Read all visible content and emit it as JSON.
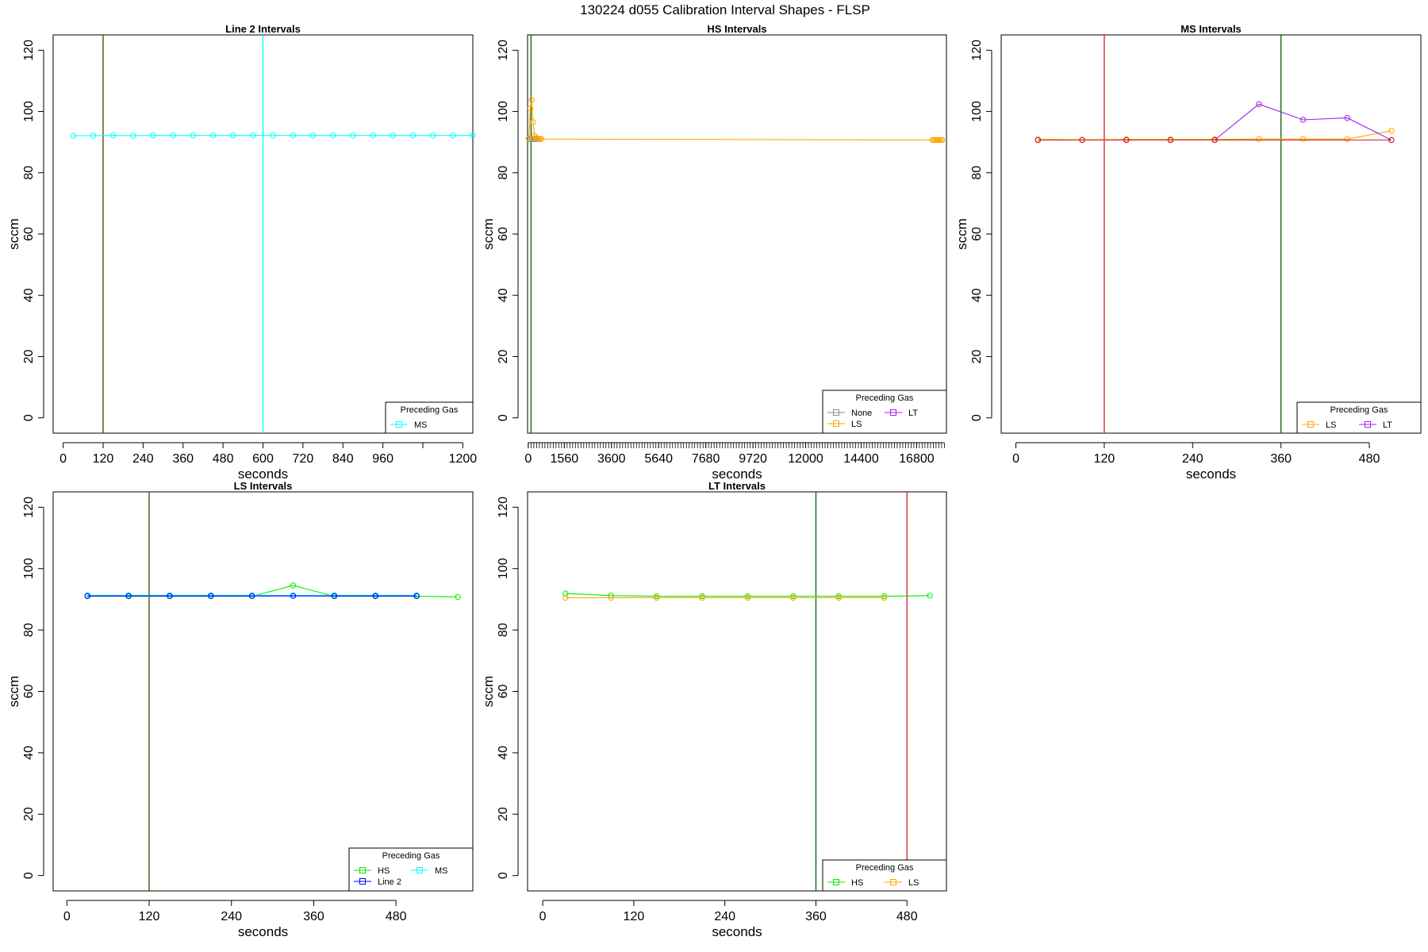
{
  "title": "130224   d055   Calibration Interval Shapes - FLSP",
  "colors": {
    "None": "#8c8c8c",
    "LS": "#ffa500",
    "LT": "#a020f0",
    "MS": "#00ffff",
    "HS": "#00ee00",
    "Line 2": "#0000ff",
    "red_marker": "#cc2222",
    "green_marker": "#006400",
    "dark_marker": "#3a4a00"
  },
  "chart_data": [
    {
      "type": "line",
      "title": "Line 2 Intervals",
      "xlabel": "seconds",
      "ylabel": "sccm",
      "xlim": [
        -30,
        1230
      ],
      "ylim": [
        -5,
        125
      ],
      "xticks": [
        0,
        120,
        240,
        360,
        480,
        600,
        720,
        840,
        960,
        1200
      ],
      "xtick_labels": [
        "0",
        "120",
        "240",
        "360",
        "480",
        "600",
        "720",
        "840",
        "960",
        "1200"
      ],
      "minor_xticks": [
        1080
      ],
      "yticks": [
        0,
        20,
        40,
        60,
        80,
        100,
        120
      ],
      "vlines": [
        {
          "x": 120,
          "color": "dark_marker"
        },
        {
          "x": 600,
          "color": "MS"
        }
      ],
      "legend": {
        "title": "Preceding Gas",
        "position": "bottomright",
        "columns": 1,
        "entries": [
          "MS"
        ]
      },
      "series": [
        {
          "name": "MS",
          "color": "MS",
          "marker": "circle",
          "x": [
            30,
            90,
            150,
            210,
            270,
            330,
            390,
            450,
            510,
            570,
            630,
            690,
            750,
            810,
            870,
            930,
            990,
            1050,
            1110,
            1170,
            1230
          ],
          "y": [
            92.1,
            92.1,
            92.2,
            92.1,
            92.2,
            92.2,
            92.2,
            92.2,
            92.2,
            92.2,
            92.2,
            92.2,
            92.2,
            92.2,
            92.2,
            92.2,
            92.2,
            92.2,
            92.2,
            92.2,
            92.2
          ]
        }
      ]
    },
    {
      "type": "line",
      "title": "HS Intervals",
      "xlabel": "seconds",
      "ylabel": "sccm",
      "xlim": [
        -30,
        18090
      ],
      "ylim": [
        -5,
        125
      ],
      "xticks": [
        0,
        1560,
        3600,
        5640,
        7680,
        9720,
        12000,
        14400,
        16800
      ],
      "xtick_labels": [
        "0",
        "1560",
        "3600",
        "5640",
        "7680",
        "9720",
        "12000",
        "14400",
        "16800"
      ],
      "minor_xtick_step": 120,
      "minor_xtick_range": [
        0,
        18000
      ],
      "yticks": [
        0,
        20,
        40,
        60,
        80,
        100,
        120
      ],
      "vlines": [
        {
          "x": 120,
          "color": "green_marker"
        }
      ],
      "legend": {
        "title": "Preceding Gas",
        "position": "bottomright",
        "columns": 2,
        "entries": [
          "None",
          "LT",
          "LS"
        ]
      },
      "series": [
        {
          "name": "None",
          "color": "None",
          "marker": "circle",
          "x": [
            30,
            90,
            150,
            210,
            270,
            330,
            390,
            450
          ],
          "y": [
            91.0,
            91.0,
            91.0,
            91.0,
            91.0,
            91.0,
            91.0,
            91.0
          ]
        },
        {
          "name": "LS",
          "color": "LS",
          "marker": "circle",
          "x": [
            30,
            90,
            150,
            210,
            270,
            330,
            390,
            450,
            510,
            570,
            17490,
            17550,
            17610,
            17670,
            17730,
            17790,
            17850,
            17910
          ],
          "y": [
            91.2,
            101.0,
            103.8,
            96.5,
            92.1,
            91.3,
            91.1,
            91.1,
            91.1,
            91.0,
            90.7,
            90.7,
            90.7,
            90.7,
            90.7,
            90.7,
            90.7,
            90.7
          ]
        },
        {
          "name": "LT",
          "color": "LT",
          "marker": "circle",
          "x": [],
          "y": []
        }
      ]
    },
    {
      "type": "line",
      "title": "MS Intervals",
      "xlabel": "seconds",
      "ylabel": "sccm",
      "xlim": [
        -20,
        550
      ],
      "ylim": [
        -5,
        125
      ],
      "xticks": [
        0,
        120,
        240,
        360,
        480
      ],
      "xtick_labels": [
        "0",
        "120",
        "240",
        "360",
        "480"
      ],
      "yticks": [
        0,
        20,
        40,
        60,
        80,
        100,
        120
      ],
      "vlines": [
        {
          "x": 120,
          "color": "red_marker"
        },
        {
          "x": 360,
          "color": "green_marker"
        }
      ],
      "legend": {
        "title": "Preceding Gas",
        "position": "bottomright",
        "columns": 2,
        "entries": [
          "LS",
          "LT"
        ]
      },
      "series": [
        {
          "name": "LS",
          "color": "LS",
          "marker": "circle",
          "x": [
            30,
            90,
            150,
            210,
            270,
            330,
            390,
            450,
            510
          ],
          "y": [
            90.9,
            90.8,
            90.9,
            90.9,
            90.9,
            91.0,
            91.0,
            91.0,
            93.7
          ]
        },
        {
          "name": "LT",
          "color": "LT",
          "marker": "circle",
          "x": [
            30,
            90,
            150,
            210,
            270,
            330,
            390,
            450,
            510
          ],
          "y": [
            90.7,
            90.7,
            90.7,
            90.7,
            90.7,
            102.4,
            97.3,
            97.9,
            90.7
          ]
        },
        {
          "name": "",
          "color": "red_marker",
          "marker": "circle",
          "x": [
            30,
            90,
            150,
            210,
            270,
            510
          ],
          "y": [
            90.7,
            90.7,
            90.7,
            90.7,
            90.7,
            90.7
          ]
        }
      ]
    },
    {
      "type": "line",
      "title": "LS Intervals",
      "xlabel": "seconds",
      "ylabel": "sccm",
      "xlim": [
        -20,
        592
      ],
      "ylim": [
        -5,
        125
      ],
      "xticks": [
        0,
        120,
        240,
        360,
        480
      ],
      "xtick_labels": [
        "0",
        "120",
        "240",
        "360",
        "480"
      ],
      "yticks": [
        0,
        20,
        40,
        60,
        80,
        100,
        120
      ],
      "vlines": [
        {
          "x": 120,
          "color": "dark_marker"
        }
      ],
      "legend": {
        "title": "Preceding Gas",
        "position": "bottomright",
        "columns": 2,
        "entries": [
          "HS",
          "MS",
          "Line 2"
        ]
      },
      "series": [
        {
          "name": "HS",
          "color": "HS",
          "marker": "circle",
          "x": [
            30,
            90,
            150,
            210,
            270,
            330,
            390,
            450,
            510,
            570
          ],
          "y": [
            91.0,
            91.0,
            91.0,
            91.0,
            91.0,
            94.5,
            91.0,
            91.0,
            91.0,
            90.8
          ]
        },
        {
          "name": "MS",
          "color": "MS",
          "marker": "circle",
          "x": [
            30,
            90,
            150,
            210,
            270,
            330,
            390,
            450,
            510
          ],
          "y": [
            91.3,
            91.3,
            91.3,
            91.3,
            91.3,
            91.3,
            91.3,
            91.3,
            91.3
          ]
        },
        {
          "name": "Line 2",
          "color": "Line 2",
          "marker": "circle",
          "x": [
            30,
            90,
            150,
            210,
            270,
            330,
            390,
            450,
            510
          ],
          "y": [
            91.1,
            91.1,
            91.1,
            91.1,
            91.1,
            91.1,
            91.1,
            91.1,
            91.1
          ]
        }
      ]
    },
    {
      "type": "line",
      "title": "LT Intervals",
      "xlabel": "seconds",
      "ylabel": "sccm",
      "xlim": [
        -20,
        532
      ],
      "ylim": [
        -5,
        125
      ],
      "xticks": [
        0,
        120,
        240,
        360,
        480
      ],
      "xtick_labels": [
        "0",
        "120",
        "240",
        "360",
        "480"
      ],
      "yticks": [
        0,
        20,
        40,
        60,
        80,
        100,
        120
      ],
      "vlines": [
        {
          "x": 360,
          "color": "green_marker"
        },
        {
          "x": 480,
          "color": "red_marker"
        }
      ],
      "legend": {
        "title": "Preceding Gas",
        "position": "bottomright",
        "columns": 2,
        "entries": [
          "HS",
          "LS"
        ]
      },
      "series": [
        {
          "name": "HS",
          "color": "HS",
          "marker": "circle",
          "x": [
            30,
            90,
            150,
            210,
            270,
            330,
            390,
            450,
            510
          ],
          "y": [
            91.9,
            91.2,
            91.0,
            91.0,
            91.0,
            91.0,
            91.0,
            91.0,
            91.2
          ]
        },
        {
          "name": "LS",
          "color": "LS",
          "marker": "circle",
          "x": [
            30,
            90,
            150,
            210,
            270,
            330,
            390,
            450
          ],
          "y": [
            90.5,
            90.5,
            90.5,
            90.5,
            90.5,
            90.5,
            90.5,
            90.5
          ]
        }
      ]
    }
  ]
}
